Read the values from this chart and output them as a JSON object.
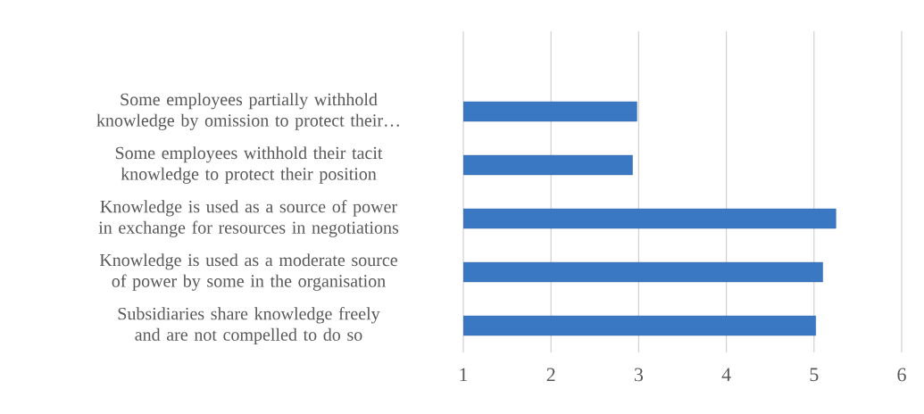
{
  "chart_data": {
    "type": "bar",
    "orientation": "horizontal",
    "categories": [
      "Some employees partially withhold knowledge by omission to protect their…",
      "Some employees withhold their tacit knowledge to protect their position",
      "Knowledge is used as a source of power in exchange for resources in negotiations",
      "Knowledge is used as a moderate source of power by some in the organisation",
      "Subsidiaries share knowledge freely and are not compelled to do so"
    ],
    "values": [
      2.98,
      2.93,
      5.25,
      5.1,
      5.02
    ],
    "color": "#3b78c4",
    "xlim": [
      1,
      6
    ],
    "xticks": [
      1,
      2,
      3,
      4,
      5,
      6
    ],
    "grid": "x"
  }
}
